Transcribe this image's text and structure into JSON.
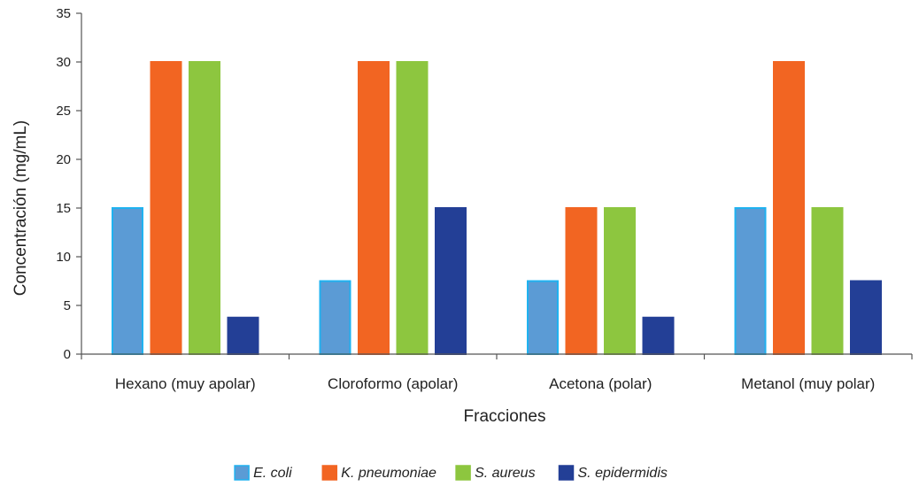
{
  "chart_data": {
    "type": "bar",
    "title": "",
    "xlabel": "Fracciones",
    "ylabel": "Concentración (mg/mL)",
    "ylim": [
      0,
      35
    ],
    "yticks": [
      0,
      5,
      10,
      15,
      20,
      25,
      30,
      35
    ],
    "grid": false,
    "legend_position": "bottom",
    "categories": [
      "Hexano (muy apolar)",
      "Cloroformo (apolar)",
      "Acetona (polar)",
      "Metanol (muy polar)"
    ],
    "series": [
      {
        "name": "E. coli",
        "color": "#5B9BD5",
        "border": "#1FB2F0",
        "values": [
          15,
          7.5,
          7.5,
          15
        ]
      },
      {
        "name": "K. pneumoniae",
        "color": "#F26522",
        "border": "#F26522",
        "values": [
          30,
          30,
          15,
          30
        ]
      },
      {
        "name": "S. aureus",
        "color": "#8DC63F",
        "border": "#8DC63F",
        "values": [
          30,
          30,
          15,
          15
        ]
      },
      {
        "name": "S. epidermidis",
        "color": "#233F96",
        "border": "#233F96",
        "values": [
          3.75,
          15,
          3.75,
          7.5
        ]
      }
    ]
  }
}
